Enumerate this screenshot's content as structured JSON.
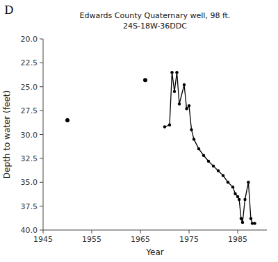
{
  "chart_data": {
    "type": "line",
    "title": "Edwards County Quaternary well,  98 ft.",
    "subtitle": "24S-18W-36DDC",
    "annotations": [
      "D"
    ],
    "x_label": "Year",
    "y_label": "Depth to water (feet)",
    "xlim": [
      1945,
      1991
    ],
    "ylim": [
      40.0,
      20.0
    ],
    "xticks": [
      1945,
      1955,
      1965,
      1975,
      1985
    ],
    "yticks": [
      {
        "value": 20.0,
        "label": "20.0"
      },
      22.5,
      {
        "value": 25.0,
        "label": "25.0"
      },
      27.5,
      {
        "value": 30.0,
        "label": "30.0"
      },
      32.5,
      {
        "value": 35.0,
        "label": "35.0"
      },
      37.5,
      {
        "value": 40.0,
        "label": "40.0"
      }
    ],
    "grid": false,
    "series": [
      {
        "type": "scatter",
        "marker": "circle",
        "color": "#000000",
        "x": [
          1950,
          1966
        ],
        "values": [
          28.5,
          24.3
        ]
      },
      {
        "type": "line",
        "marker": "circle",
        "line_style": "solid",
        "color": "#000000",
        "x": [
          1970,
          1971,
          1971.5,
          1972,
          1972.5,
          1973.0,
          1974.0,
          1974.5,
          1975.0,
          1975.5,
          1976.0,
          1977.0,
          1978.0,
          1979.0,
          1980.0,
          1981.0,
          1982.0,
          1983.0,
          1984.0,
          1984.5,
          1985.0,
          1985.3,
          1985.7,
          1986.0,
          1986.5,
          1987.2,
          1987.7,
          1988.0,
          1988.5
        ],
        "values": [
          29.2,
          29.0,
          23.5,
          25.5,
          23.5,
          26.8,
          24.8,
          27.3,
          27.0,
          29.5,
          30.5,
          31.5,
          32.2,
          32.8,
          33.3,
          33.8,
          34.3,
          35.0,
          35.5,
          36.2,
          36.5,
          36.8,
          38.8,
          39.2,
          36.8,
          35.0,
          38.8,
          39.3,
          39.3
        ]
      }
    ]
  }
}
